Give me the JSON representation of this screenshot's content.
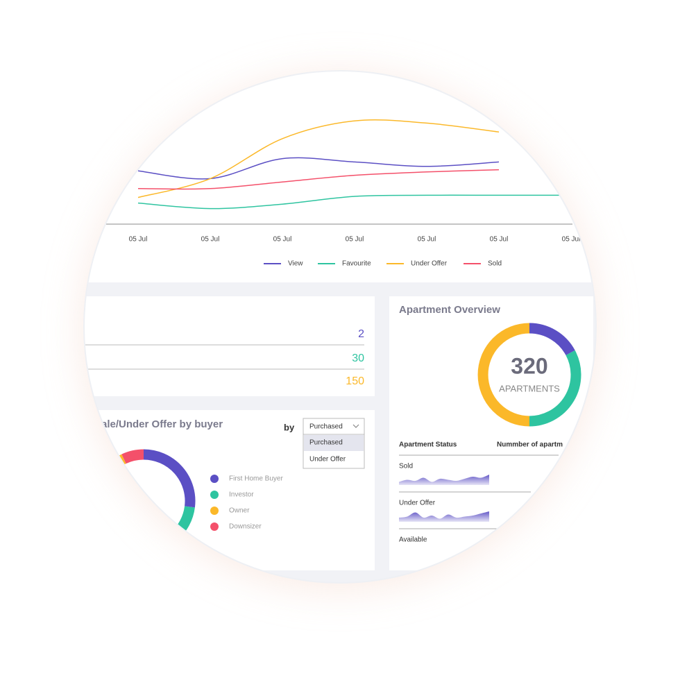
{
  "line_chart": {
    "type": "line",
    "categories": [
      "05 Jul",
      "05 Jul",
      "05 Jul",
      "05 Jul",
      "05 Jul",
      "05 Jul",
      "05 Jul"
    ],
    "ylim": [
      0,
      100
    ],
    "series": [
      {
        "name": "View",
        "color": "#5b4fc4",
        "values": [
          48,
          41,
          59,
          56,
          52,
          56,
          null
        ]
      },
      {
        "name": "Favourite",
        "color": "#2ec4a0",
        "values": [
          19,
          14,
          18,
          25,
          26,
          26,
          26
        ]
      },
      {
        "name": "Under Offer",
        "color": "#fbb829",
        "values": [
          24,
          41,
          77,
          93,
          91,
          83,
          null
        ]
      },
      {
        "name": "Sold",
        "color": "#f4506a",
        "values": [
          32,
          32,
          38,
          44,
          47,
          49,
          null
        ]
      }
    ]
  },
  "counts_panel": {
    "rows": [
      {
        "value": 2,
        "color": "#5b4fc4"
      },
      {
        "value": 30,
        "color": "#2ec4a0"
      },
      {
        "value": 150,
        "color": "#fbb829"
      }
    ]
  },
  "buyer_panel": {
    "title": "ale/Under Offer by buyer",
    "filter_label": "by",
    "selected": "Purchased",
    "options": [
      "Purchased",
      "Under Offer"
    ],
    "segments": [
      {
        "name": "First Home Buyer",
        "color": "#5b4fc4",
        "value": 27
      },
      {
        "name": "Investor",
        "color": "#2ec4a0",
        "value": 24
      },
      {
        "name": "Owner",
        "color": "#fbb829",
        "value": 42
      },
      {
        "name": "Downsizer",
        "color": "#f4506a",
        "value": 7
      }
    ]
  },
  "apartment_panel": {
    "title": "Apartment Overview",
    "total": 320,
    "total_label": "APARTMENTS",
    "segments": [
      {
        "color": "#5b4fc4",
        "value": 55
      },
      {
        "color": "#2ec4a0",
        "value": 105
      },
      {
        "color": "#fbb829",
        "value": 160
      }
    ],
    "table": {
      "headers": [
        "Apartment Status",
        "Nummber of apartm"
      ],
      "rows": [
        {
          "label": "Sold",
          "trend": [
            3,
            5,
            4,
            7,
            3,
            6,
            5,
            4,
            6,
            8,
            7,
            10
          ]
        },
        {
          "label": "Under Offer",
          "trend": [
            4,
            5,
            9,
            4,
            6,
            3,
            7,
            4,
            5,
            6,
            8,
            10
          ]
        },
        {
          "label": "Available"
        }
      ]
    }
  }
}
